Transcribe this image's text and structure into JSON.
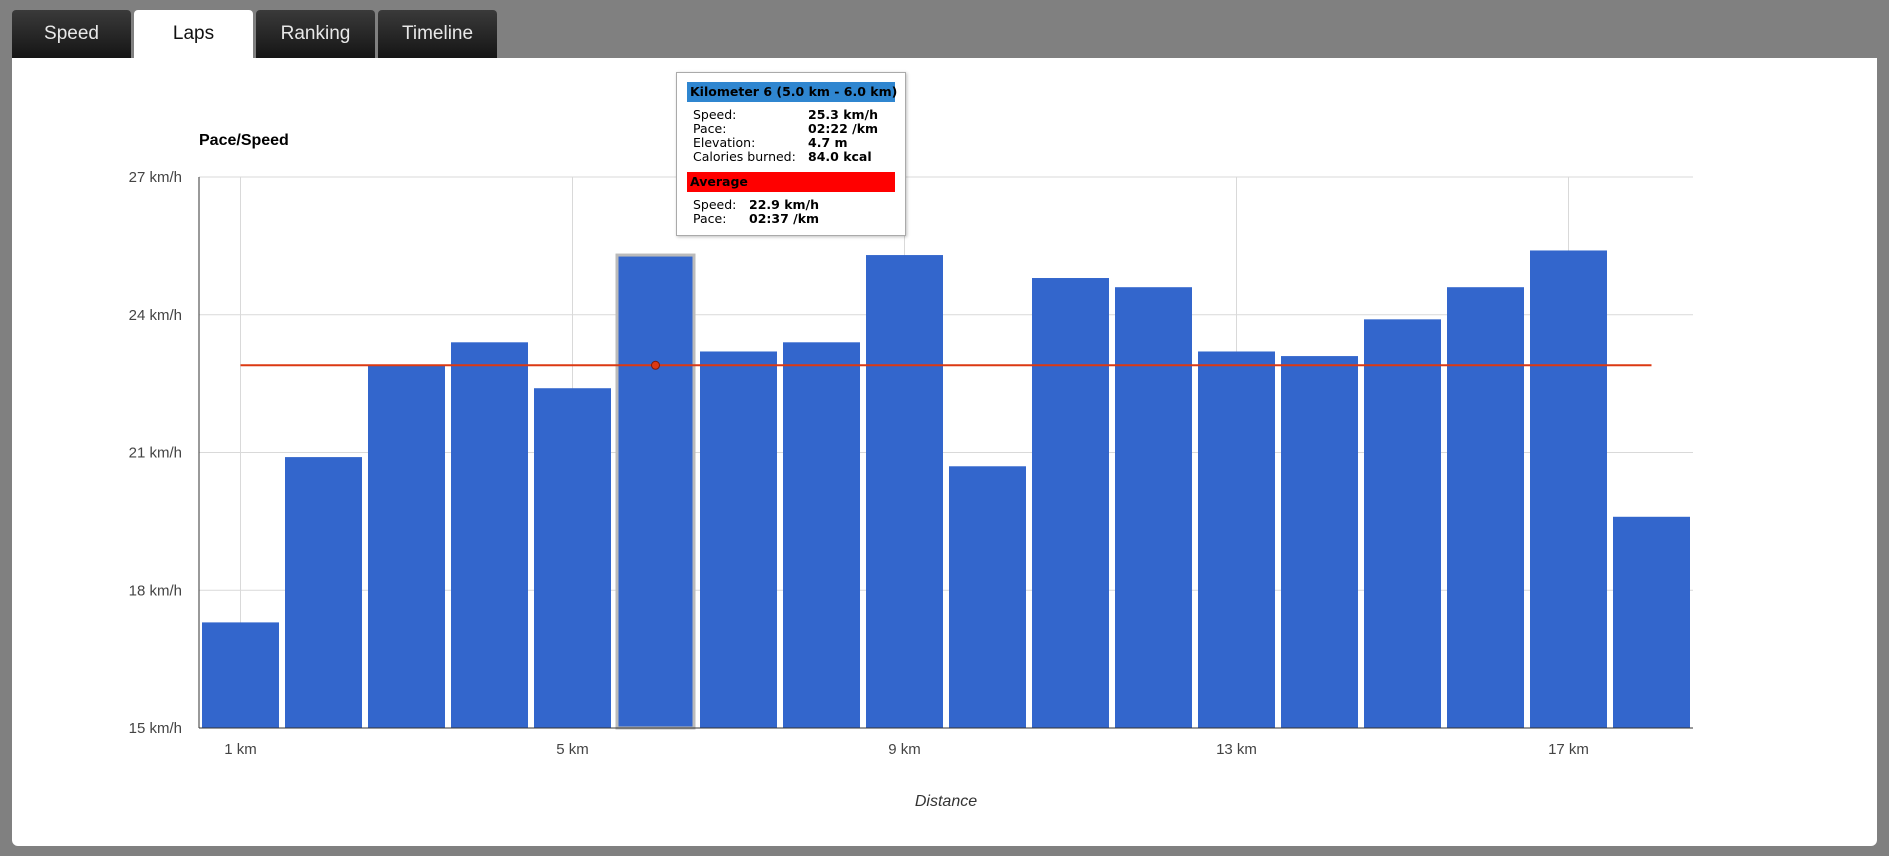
{
  "tabs": [
    {
      "label": "Speed",
      "active": false
    },
    {
      "label": "Laps",
      "active": true
    },
    {
      "label": "Ranking",
      "active": false
    },
    {
      "label": "Timeline",
      "active": false
    }
  ],
  "tooltip": {
    "header": "Kilometer 6 (5.0 km - 6.0 km)",
    "rows": [
      {
        "label": "Speed:",
        "value": "25.3 km/h"
      },
      {
        "label": "Pace:",
        "value": "02:22 /km"
      },
      {
        "label": "Elevation:",
        "value": "4.7 m"
      },
      {
        "label": "Calories burned:",
        "value": "84.0 kcal"
      }
    ],
    "average_header": "Average",
    "average_rows": [
      {
        "label": "Speed:",
        "value": "22.9 km/h"
      },
      {
        "label": "Pace:",
        "value": "02:37 /km"
      }
    ]
  },
  "chart_data": {
    "type": "bar",
    "title": "Pace/Speed",
    "xlabel": "Distance",
    "ylabel": "",
    "x": [
      1,
      2,
      3,
      4,
      5,
      6,
      7,
      8,
      9,
      10,
      11,
      12,
      13,
      14,
      15,
      16,
      17,
      18
    ],
    "x_tick_values": [
      1,
      5,
      9,
      13,
      17
    ],
    "x_tick_labels": [
      "1 km",
      "5 km",
      "9 km",
      "13 km",
      "17 km"
    ],
    "values": [
      17.3,
      20.9,
      22.9,
      23.4,
      22.4,
      25.3,
      23.2,
      23.4,
      25.3,
      20.7,
      24.8,
      24.6,
      23.2,
      23.1,
      23.9,
      24.6,
      25.4,
      19.6
    ],
    "ylim": [
      15,
      27
    ],
    "y_ticks": [
      15,
      18,
      21,
      24,
      27
    ],
    "y_tick_labels": [
      "15 km/h",
      "18 km/h",
      "21 km/h",
      "24 km/h",
      "27 km/h"
    ],
    "average": 22.9,
    "highlighted_index": 5,
    "bar_color": "#3366cc",
    "average_line_color": "#dc3912",
    "grid": true
  }
}
